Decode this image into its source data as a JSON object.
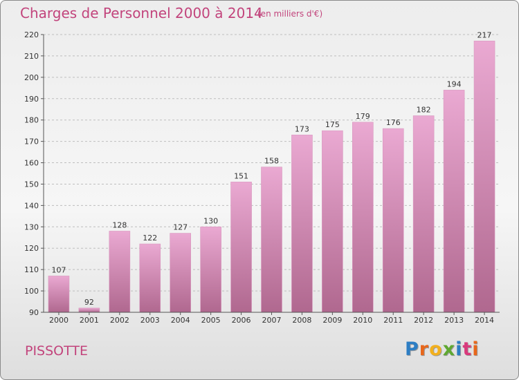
{
  "header": {
    "title": "Charges de Personnel 2000 à 2014",
    "subtitle": "(en milliers d'€)"
  },
  "footer": {
    "commune": "PISSOTTE",
    "brand_letters": [
      "P",
      "r",
      "o",
      "x",
      "i",
      "t",
      "i"
    ],
    "brand_colors": [
      "#2d7ec4",
      "#e8671b",
      "#f2b01e",
      "#5fa831",
      "#2d7ec4",
      "#d93a7c",
      "#e8671b"
    ]
  },
  "colors": {
    "bar_top": "#eaa9d2",
    "bar_bottom": "#b0688f",
    "title": "#c2447c"
  },
  "chart_data": {
    "type": "bar",
    "title": "Charges de Personnel 2000 à 2014",
    "subtitle": "(en milliers d'€)",
    "categories": [
      "2000",
      "2001",
      "2002",
      "2003",
      "2004",
      "2005",
      "2006",
      "2007",
      "2008",
      "2009",
      "2010",
      "2011",
      "2012",
      "2013",
      "2014"
    ],
    "values": [
      107,
      92,
      128,
      122,
      127,
      130,
      151,
      158,
      173,
      175,
      179,
      176,
      182,
      194,
      217
    ],
    "ylim": [
      90,
      220
    ],
    "yticks": [
      90,
      100,
      110,
      120,
      130,
      140,
      150,
      160,
      170,
      180,
      190,
      200,
      210,
      220
    ],
    "grid": true
  }
}
